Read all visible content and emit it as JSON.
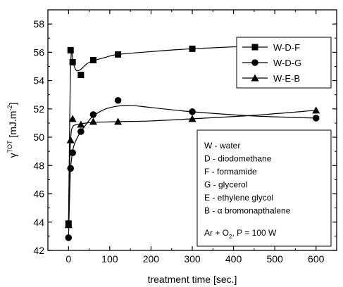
{
  "chart_data": {
    "type": "line",
    "xlabel": "treatment time [sec.]",
    "ylabel": {
      "base": "γ",
      "sup": "TOT",
      "rest": " [mJ.m",
      "sup2": "-2",
      "close": "]"
    },
    "xlim": [
      -50,
      650
    ],
    "ylim": [
      42,
      59
    ],
    "xticks": [
      0,
      100,
      200,
      300,
      400,
      500,
      600
    ],
    "yticks": [
      42,
      44,
      46,
      48,
      50,
      52,
      54,
      56,
      58
    ],
    "grid": false,
    "legend_position": "top-right",
    "series": [
      {
        "name": "W-D-F",
        "marker": "square",
        "x": [
          0,
          5,
          10,
          30,
          60,
          120,
          300,
          600
        ],
        "y": [
          43.9,
          56.15,
          55.3,
          54.4,
          55.45,
          55.85,
          56.25,
          56.65
        ],
        "curve": [
          [
            0,
            43.9
          ],
          [
            2,
            49
          ],
          [
            4,
            53.6
          ],
          [
            6,
            55.6
          ],
          [
            8,
            56.1
          ],
          [
            10,
            55.6
          ],
          [
            14,
            55.0
          ],
          [
            20,
            54.7
          ],
          [
            30,
            54.8
          ],
          [
            45,
            55.2
          ],
          [
            60,
            55.4
          ],
          [
            90,
            55.65
          ],
          [
            120,
            55.85
          ],
          [
            200,
            56.05
          ],
          [
            300,
            56.25
          ],
          [
            450,
            56.45
          ],
          [
            600,
            56.65
          ]
        ]
      },
      {
        "name": "W-D-G",
        "marker": "circle",
        "x": [
          0,
          5,
          10,
          30,
          60,
          120,
          300,
          600
        ],
        "y": [
          42.9,
          47.8,
          48.9,
          50.4,
          51.6,
          52.6,
          51.8,
          51.35
        ],
        "curve": [
          [
            0,
            42.9
          ],
          [
            3,
            46.2
          ],
          [
            5,
            47.8
          ],
          [
            8,
            48.6
          ],
          [
            12,
            49.3
          ],
          [
            20,
            49.9
          ],
          [
            30,
            50.4
          ],
          [
            45,
            51.0
          ],
          [
            60,
            51.5
          ],
          [
            90,
            52.0
          ],
          [
            120,
            52.2
          ],
          [
            150,
            52.25
          ],
          [
            200,
            52.1
          ],
          [
            300,
            51.8
          ],
          [
            450,
            51.5
          ],
          [
            600,
            51.35
          ]
        ]
      },
      {
        "name": "W-E-B",
        "marker": "triangle",
        "x": [
          0,
          5,
          10,
          30,
          60,
          120,
          300,
          600
        ],
        "y": [
          43.8,
          49.8,
          51.3,
          50.9,
          51.1,
          51.1,
          51.3,
          51.9
        ],
        "curve": [
          [
            0,
            43.8
          ],
          [
            2,
            47.5
          ],
          [
            4,
            49.2
          ],
          [
            6,
            50.2
          ],
          [
            8,
            50.6
          ],
          [
            12,
            50.8
          ],
          [
            20,
            50.9
          ],
          [
            30,
            50.95
          ],
          [
            60,
            51.05
          ],
          [
            120,
            51.1
          ],
          [
            200,
            51.15
          ],
          [
            300,
            51.3
          ],
          [
            450,
            51.55
          ],
          [
            600,
            51.9
          ]
        ]
      }
    ],
    "notes": {
      "lines": [
        "W - water",
        "D - diodomethane",
        "F - formamide",
        "G - glycerol",
        "E - ethylene glycol",
        "B - α bromonapthalene"
      ],
      "conditions": {
        "pre": "Ar + O",
        "sub": "2",
        "post": ", P = 100 W"
      }
    }
  }
}
